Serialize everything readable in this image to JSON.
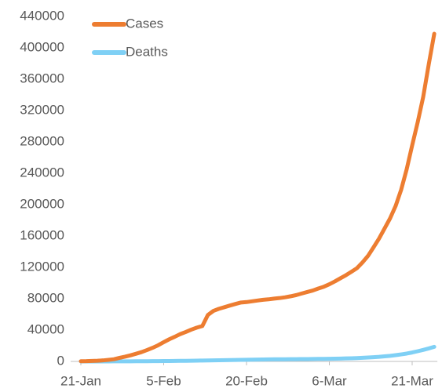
{
  "chart_data": {
    "type": "line",
    "categories": [
      "21-Jan",
      null,
      null,
      null,
      null,
      null,
      null,
      null,
      null,
      null,
      null,
      null,
      null,
      null,
      null,
      "5-Feb",
      null,
      null,
      null,
      null,
      null,
      null,
      null,
      null,
      null,
      null,
      null,
      null,
      null,
      null,
      "20-Feb",
      null,
      null,
      null,
      null,
      null,
      null,
      null,
      null,
      null,
      null,
      null,
      null,
      null,
      null,
      "6-Mar",
      null,
      null,
      null,
      null,
      null,
      null,
      null,
      null,
      null,
      null,
      null,
      null,
      null,
      null,
      "21-Mar",
      null,
      null,
      null,
      null
    ],
    "series": [
      {
        "name": "Cases",
        "color": "#ed7d31",
        "values": [
          282,
          330,
          580,
          845,
          1317,
          2015,
          2800,
          4581,
          6058,
          7813,
          9823,
          11950,
          14553,
          17391,
          20630,
          24545,
          28266,
          31439,
          34876,
          37552,
          40553,
          43099,
          45134,
          59287,
          64438,
          67100,
          69197,
          71329,
          73332,
          75184,
          75700,
          76677,
          77673,
          78651,
          79205,
          80087,
          80828,
          81820,
          83112,
          84615,
          86604,
          88585,
          90443,
          93016,
          95314,
          98425,
          102050,
          106099,
          109991,
          114381,
          118948,
          126214,
          134576,
          145483,
          156653,
          169593,
          182490,
          198238,
          218822,
          244933,
          275597,
          305036,
          337489,
          378830,
          417966
        ]
      },
      {
        "name": "Deaths",
        "color": "#7fd0f5",
        "values": [
          6,
          9,
          17,
          25,
          41,
          56,
          80,
          106,
          132,
          170,
          213,
          259,
          304,
          362,
          426,
          492,
          565,
          638,
          724,
          813,
          910,
          1018,
          1115,
          1261,
          1383,
          1526,
          1669,
          1775,
          1873,
          2009,
          2126,
          2247,
          2360,
          2460,
          2618,
          2699,
          2763,
          2800,
          2858,
          2923,
          2977,
          3050,
          3117,
          3202,
          3285,
          3387,
          3494,
          3599,
          3827,
          4025,
          4296,
          4628,
          4981,
          5428,
          5833,
          6520,
          7162,
          7982,
          8951,
          10031,
          11386,
          13004,
          14655,
          16558,
          18605
        ]
      }
    ],
    "ylim": [
      0,
      440000
    ],
    "yticks": [
      0,
      40000,
      80000,
      120000,
      160000,
      200000,
      240000,
      280000,
      320000,
      360000,
      400000,
      440000
    ],
    "legend": "top-left"
  }
}
